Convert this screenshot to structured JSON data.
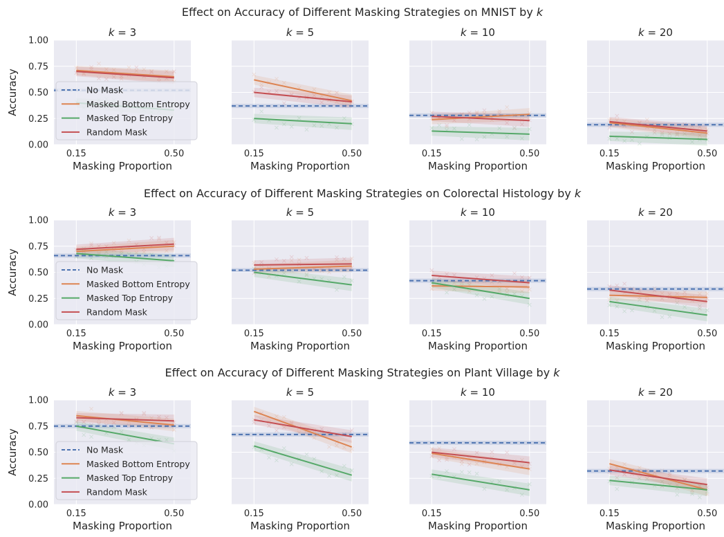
{
  "figure": {
    "rows": [
      {
        "title": "Effect on Accuracy of Different Masking Strategies on MNIST by k",
        "dataset": "MNIST"
      },
      {
        "title": "Effect on Accuracy of Different Masking Strategies on Colorectal Histology by k",
        "dataset": "Colorectal Histology"
      },
      {
        "title": "Effect on Accuracy of Different Masking Strategies on Plant Village by k",
        "dataset": "Plant Village"
      }
    ],
    "ylabel": "Accuracy",
    "xlabel": "Masking Proportion",
    "xticks": [
      0.15,
      0.5
    ],
    "xtick_labels": [
      "0.15",
      "0.50"
    ],
    "yticks": [
      0,
      0.25,
      0.5,
      0.75,
      1.0
    ],
    "ytick_labels": [
      "0.00",
      "0.25",
      "0.50",
      "0.75",
      "1.00"
    ],
    "legend": [
      {
        "label": "No Mask",
        "color": "#4c72b0",
        "style": "dashed"
      },
      {
        "label": "Masked Bottom Entropy",
        "color": "#dd8452",
        "style": "solid"
      },
      {
        "label": "Masked Top Entropy",
        "color": "#55a868",
        "style": "solid"
      },
      {
        "label": "Random Mask",
        "color": "#c44e52",
        "style": "solid"
      }
    ],
    "colors": {
      "background": "#eaeaf2",
      "grid": "#ffffff",
      "no_mask": "#4c72b0",
      "bottom": "#dd8452",
      "top": "#55a868",
      "random": "#c44e52"
    }
  },
  "chart_data": [
    {
      "type": "line",
      "row": 0,
      "title": "k = 3",
      "xlim": [
        0.07,
        0.56
      ],
      "ylim": [
        0,
        1
      ],
      "no_mask": 0.52,
      "series": [
        {
          "name": "Masked Bottom Entropy",
          "x": [
            0.15,
            0.5
          ],
          "y": [
            0.71,
            0.65
          ]
        },
        {
          "name": "Masked Top Entropy",
          "x": [
            0.15,
            0.5
          ],
          "y": [
            0.4,
            0.33
          ]
        },
        {
          "name": "Random Mask",
          "x": [
            0.15,
            0.5
          ],
          "y": [
            0.7,
            0.64
          ]
        }
      ]
    },
    {
      "type": "line",
      "row": 0,
      "title": "k = 5",
      "xlim": [
        0.07,
        0.56
      ],
      "ylim": [
        0,
        1
      ],
      "no_mask": 0.37,
      "series": [
        {
          "name": "Masked Bottom Entropy",
          "x": [
            0.15,
            0.5
          ],
          "y": [
            0.62,
            0.42
          ]
        },
        {
          "name": "Masked Top Entropy",
          "x": [
            0.15,
            0.5
          ],
          "y": [
            0.25,
            0.2
          ]
        },
        {
          "name": "Random Mask",
          "x": [
            0.15,
            0.5
          ],
          "y": [
            0.5,
            0.41
          ]
        }
      ]
    },
    {
      "type": "line",
      "row": 0,
      "title": "k = 10",
      "xlim": [
        0.07,
        0.56
      ],
      "ylim": [
        0,
        1
      ],
      "no_mask": 0.28,
      "series": [
        {
          "name": "Masked Bottom Entropy",
          "x": [
            0.15,
            0.5
          ],
          "y": [
            0.24,
            0.29
          ]
        },
        {
          "name": "Masked Top Entropy",
          "x": [
            0.15,
            0.5
          ],
          "y": [
            0.13,
            0.1
          ]
        },
        {
          "name": "Random Mask",
          "x": [
            0.15,
            0.5
          ],
          "y": [
            0.27,
            0.23
          ]
        }
      ]
    },
    {
      "type": "line",
      "row": 0,
      "title": "k = 20",
      "xlim": [
        0.07,
        0.56
      ],
      "ylim": [
        0,
        1
      ],
      "no_mask": 0.19,
      "series": [
        {
          "name": "Masked Bottom Entropy",
          "x": [
            0.15,
            0.5
          ],
          "y": [
            0.21,
            0.11
          ]
        },
        {
          "name": "Masked Top Entropy",
          "x": [
            0.15,
            0.5
          ],
          "y": [
            0.08,
            0.05
          ]
        },
        {
          "name": "Random Mask",
          "x": [
            0.15,
            0.5
          ],
          "y": [
            0.22,
            0.13
          ]
        }
      ]
    },
    {
      "type": "line",
      "row": 1,
      "title": "k = 3",
      "xlim": [
        0.07,
        0.56
      ],
      "ylim": [
        0,
        1
      ],
      "no_mask": 0.66,
      "series": [
        {
          "name": "Masked Bottom Entropy",
          "x": [
            0.15,
            0.5
          ],
          "y": [
            0.7,
            0.75
          ]
        },
        {
          "name": "Masked Top Entropy",
          "x": [
            0.15,
            0.5
          ],
          "y": [
            0.68,
            0.61
          ]
        },
        {
          "name": "Random Mask",
          "x": [
            0.15,
            0.5
          ],
          "y": [
            0.72,
            0.77
          ]
        }
      ]
    },
    {
      "type": "line",
      "row": 1,
      "title": "k = 5",
      "xlim": [
        0.07,
        0.56
      ],
      "ylim": [
        0,
        1
      ],
      "no_mask": 0.52,
      "series": [
        {
          "name": "Masked Bottom Entropy",
          "x": [
            0.15,
            0.5
          ],
          "y": [
            0.53,
            0.56
          ]
        },
        {
          "name": "Masked Top Entropy",
          "x": [
            0.15,
            0.5
          ],
          "y": [
            0.5,
            0.38
          ]
        },
        {
          "name": "Random Mask",
          "x": [
            0.15,
            0.5
          ],
          "y": [
            0.57,
            0.58
          ]
        }
      ]
    },
    {
      "type": "line",
      "row": 1,
      "title": "k = 10",
      "xlim": [
        0.07,
        0.56
      ],
      "ylim": [
        0,
        1
      ],
      "no_mask": 0.42,
      "series": [
        {
          "name": "Masked Bottom Entropy",
          "x": [
            0.15,
            0.5
          ],
          "y": [
            0.37,
            0.36
          ]
        },
        {
          "name": "Masked Top Entropy",
          "x": [
            0.15,
            0.5
          ],
          "y": [
            0.4,
            0.25
          ]
        },
        {
          "name": "Random Mask",
          "x": [
            0.15,
            0.5
          ],
          "y": [
            0.47,
            0.4
          ]
        }
      ]
    },
    {
      "type": "line",
      "row": 1,
      "title": "k = 20",
      "xlim": [
        0.07,
        0.56
      ],
      "ylim": [
        0,
        1
      ],
      "no_mask": 0.34,
      "series": [
        {
          "name": "Masked Bottom Entropy",
          "x": [
            0.15,
            0.5
          ],
          "y": [
            0.28,
            0.26
          ]
        },
        {
          "name": "Masked Top Entropy",
          "x": [
            0.15,
            0.5
          ],
          "y": [
            0.22,
            0.09
          ]
        },
        {
          "name": "Random Mask",
          "x": [
            0.15,
            0.5
          ],
          "y": [
            0.33,
            0.22
          ]
        }
      ]
    },
    {
      "type": "line",
      "row": 2,
      "title": "k = 3",
      "xlim": [
        0.07,
        0.56
      ],
      "ylim": [
        0,
        1
      ],
      "no_mask": 0.75,
      "series": [
        {
          "name": "Masked Bottom Entropy",
          "x": [
            0.15,
            0.5
          ],
          "y": [
            0.85,
            0.76
          ]
        },
        {
          "name": "Masked Top Entropy",
          "x": [
            0.15,
            0.5
          ],
          "y": [
            0.75,
            0.58
          ]
        },
        {
          "name": "Random Mask",
          "x": [
            0.15,
            0.5
          ],
          "y": [
            0.83,
            0.8
          ]
        }
      ]
    },
    {
      "type": "line",
      "row": 2,
      "title": "k = 5",
      "xlim": [
        0.07,
        0.56
      ],
      "ylim": [
        0,
        1
      ],
      "no_mask": 0.67,
      "series": [
        {
          "name": "Masked Bottom Entropy",
          "x": [
            0.15,
            0.5
          ],
          "y": [
            0.89,
            0.55
          ]
        },
        {
          "name": "Masked Top Entropy",
          "x": [
            0.15,
            0.5
          ],
          "y": [
            0.56,
            0.28
          ]
        },
        {
          "name": "Random Mask",
          "x": [
            0.15,
            0.5
          ],
          "y": [
            0.81,
            0.65
          ]
        }
      ]
    },
    {
      "type": "line",
      "row": 2,
      "title": "k = 10",
      "xlim": [
        0.07,
        0.56
      ],
      "ylim": [
        0,
        1
      ],
      "no_mask": 0.59,
      "series": [
        {
          "name": "Masked Bottom Entropy",
          "x": [
            0.15,
            0.5
          ],
          "y": [
            0.49,
            0.34
          ]
        },
        {
          "name": "Masked Top Entropy",
          "x": [
            0.15,
            0.5
          ],
          "y": [
            0.29,
            0.14
          ]
        },
        {
          "name": "Random Mask",
          "x": [
            0.15,
            0.5
          ],
          "y": [
            0.5,
            0.4
          ]
        }
      ]
    },
    {
      "type": "line",
      "row": 2,
      "title": "k = 20",
      "xlim": [
        0.07,
        0.56
      ],
      "ylim": [
        0,
        1
      ],
      "no_mask": 0.32,
      "series": [
        {
          "name": "Masked Bottom Entropy",
          "x": [
            0.15,
            0.5
          ],
          "y": [
            0.39,
            0.14
          ]
        },
        {
          "name": "Masked Top Entropy",
          "x": [
            0.15,
            0.5
          ],
          "y": [
            0.23,
            0.14
          ]
        },
        {
          "name": "Random Mask",
          "x": [
            0.15,
            0.5
          ],
          "y": [
            0.33,
            0.19
          ]
        }
      ]
    }
  ]
}
